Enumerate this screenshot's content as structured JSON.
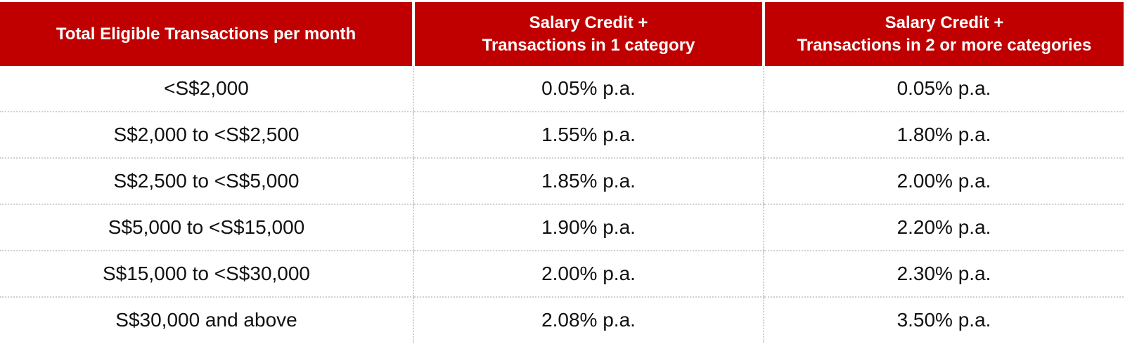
{
  "colors": {
    "header_bg": "#c00000",
    "header_text": "#ffffff",
    "cell_text": "#111111",
    "divider": "#d0d0d0"
  },
  "table": {
    "headers": [
      [
        "Total Eligible Transactions per month"
      ],
      [
        "Salary Credit +",
        "Transactions in 1 category"
      ],
      [
        "Salary Credit +",
        "Transactions in 2 or more categories"
      ]
    ],
    "rows": [
      [
        "<S$2,000",
        "0.05% p.a.",
        "0.05% p.a."
      ],
      [
        "S$2,000 to <S$2,500",
        "1.55% p.a.",
        "1.80% p.a."
      ],
      [
        "S$2,500 to <S$5,000",
        "1.85% p.a.",
        "2.00% p.a."
      ],
      [
        "S$5,000 to <S$15,000",
        "1.90% p.a.",
        "2.20% p.a."
      ],
      [
        "S$15,000 to <S$30,000",
        "2.00% p.a.",
        "2.30% p.a."
      ],
      [
        "S$30,000 and above",
        "2.08% p.a.",
        "3.50% p.a."
      ]
    ]
  }
}
